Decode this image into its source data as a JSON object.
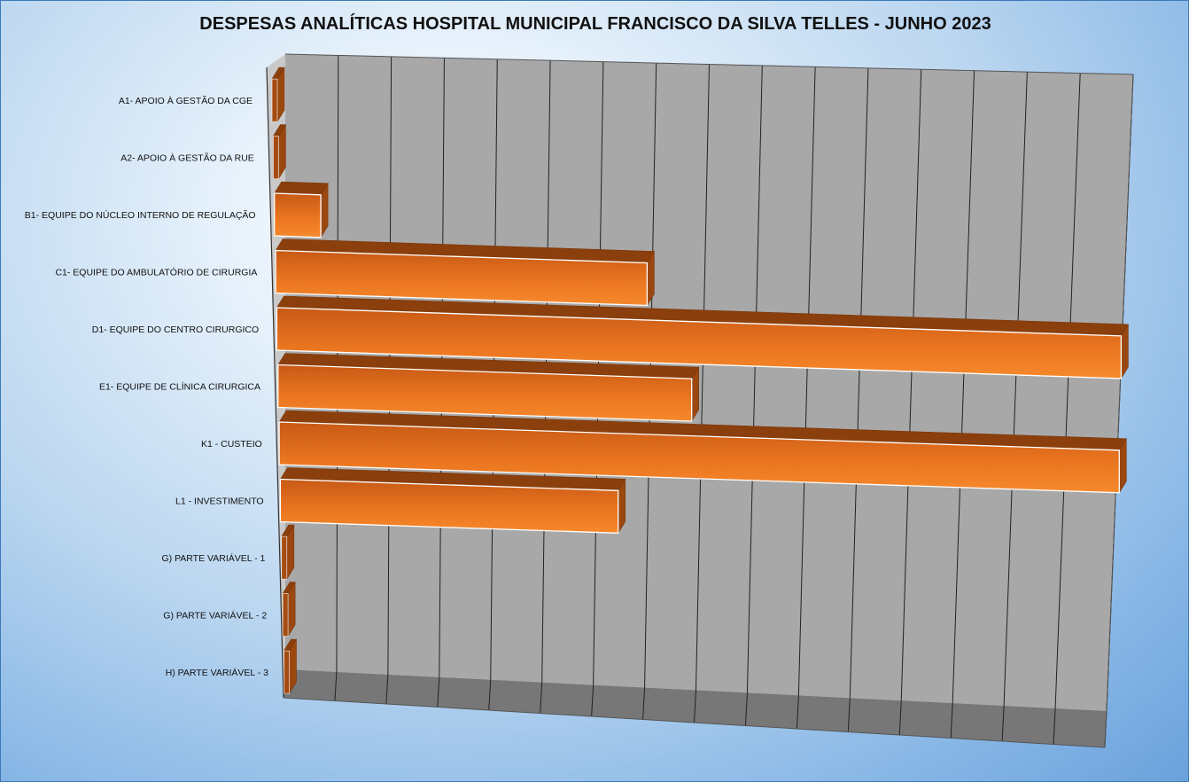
{
  "chart_data": {
    "type": "bar",
    "orientation": "horizontal",
    "three_d": true,
    "title": "DESPESAS ANALÍTICAS HOSPITAL MUNICIPAL FRANCISCO DA SILVA TELLES - JUNHO 2023",
    "xlabel": "",
    "ylabel": "",
    "categories": [
      "A1- APOIO À GESTÃO DA CGE",
      "A2- APOIO À GESTÃO DA RUE",
      "B1- EQUIPE DO NÚCLEO INTERNO DE REGULAÇÃO",
      "C1- EQUIPE DO AMBULATÓRIO DE CIRURGIA",
      "D1- EQUIPE DO CENTRO CIRURGICO",
      "E1- EQUIPE DE CLÍNICA CIRURGICA",
      "K1 - CUSTEIO",
      "L1 - INVESTIMENTO",
      "G) PARTE VARIÁVEL - 1",
      "G) PARTE VARIÁVEL - 2",
      "H) PARTE VARIÁVEL - 3"
    ],
    "values": [
      0,
      0,
      5.5,
      44,
      100,
      49,
      99.5,
      40,
      0,
      0,
      0
    ],
    "xlim": [
      0,
      100
    ],
    "grid": true,
    "legend": "none",
    "bar_color": "#e8731f",
    "wall_color": "#a8a8a8",
    "floor_color": "#777777"
  }
}
